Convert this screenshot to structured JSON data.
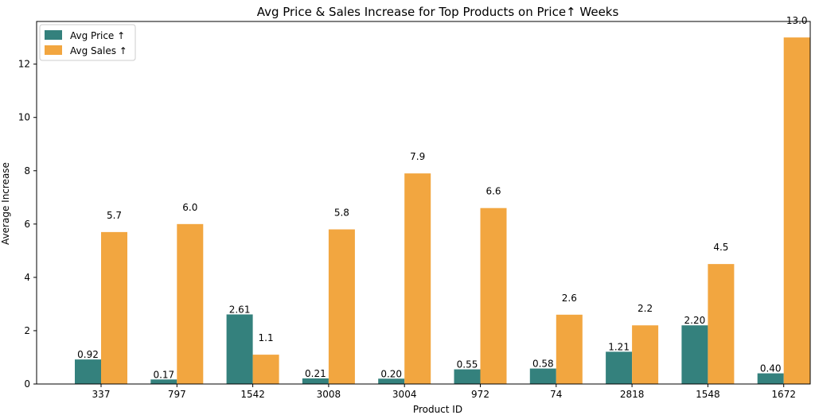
{
  "chart_data": {
    "type": "bar",
    "title": "Avg Price & Sales Increase for Top Products on Price↑ Weeks",
    "xlabel": "Product ID",
    "ylabel": "Average Increase",
    "ylim": [
      0,
      13.6
    ],
    "yticks": [
      0,
      2,
      4,
      6,
      8,
      10,
      12
    ],
    "categories": [
      "337",
      "797",
      "1542",
      "3008",
      "3004",
      "972",
      "74",
      "2818",
      "1548",
      "1672"
    ],
    "series": [
      {
        "name": "Avg Price ↑",
        "color": "#34817d",
        "values": [
          0.92,
          0.17,
          2.61,
          0.21,
          0.2,
          0.55,
          0.58,
          1.21,
          2.2,
          0.4
        ],
        "labels": [
          "0.92",
          "0.17",
          "2.61",
          "0.21",
          "0.20",
          "0.55",
          "0.58",
          "1.21",
          "2.20",
          "0.40"
        ]
      },
      {
        "name": "Avg Sales ↑",
        "color": "#f2a640",
        "values": [
          5.7,
          6.0,
          1.1,
          5.8,
          7.9,
          6.6,
          2.6,
          2.2,
          4.5,
          13.0
        ],
        "labels": [
          "5.7",
          "6.0",
          "1.1",
          "5.8",
          "7.9",
          "6.6",
          "2.6",
          "2.2",
          "4.5",
          "13.0"
        ]
      }
    ],
    "legend_position": "top-left",
    "grid": false
  }
}
